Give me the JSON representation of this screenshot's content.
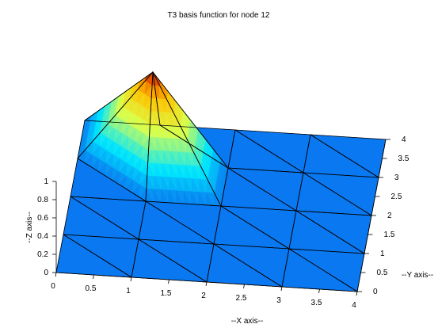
{
  "chart_data": {
    "type": "surface3d",
    "title": "T3 basis function for node 12",
    "xlabel": "--X axis--",
    "ylabel": "--Y axis--",
    "zlabel": "--Z axis--",
    "xlim": [
      0,
      4
    ],
    "ylim": [
      0,
      4
    ],
    "zlim": [
      0,
      1
    ],
    "xticks": [
      "0",
      "0.5",
      "1",
      "1.5",
      "2",
      "2.5",
      "3",
      "3.5",
      "4"
    ],
    "yticks": [
      "0",
      "0.5",
      "1",
      "1.5",
      "2",
      "2.5",
      "3",
      "3.5",
      "4"
    ],
    "zticks": [
      "0",
      "0.2",
      "0.4",
      "0.6",
      "0.8",
      "1"
    ],
    "node": 12,
    "grid_nodes_x": [
      0,
      1,
      2,
      3,
      4
    ],
    "grid_nodes_y": [
      0,
      1,
      2,
      3,
      4
    ],
    "peak": {
      "x": 1,
      "y": 3,
      "z": 1
    },
    "colormap": {
      "low": "#0a78f0",
      "mid_low": "#00e6ff",
      "mid": "#dcff4b",
      "mid_high": "#ffc000",
      "high": "#d81a00"
    },
    "mesh_color": "#000000",
    "grid": false
  }
}
